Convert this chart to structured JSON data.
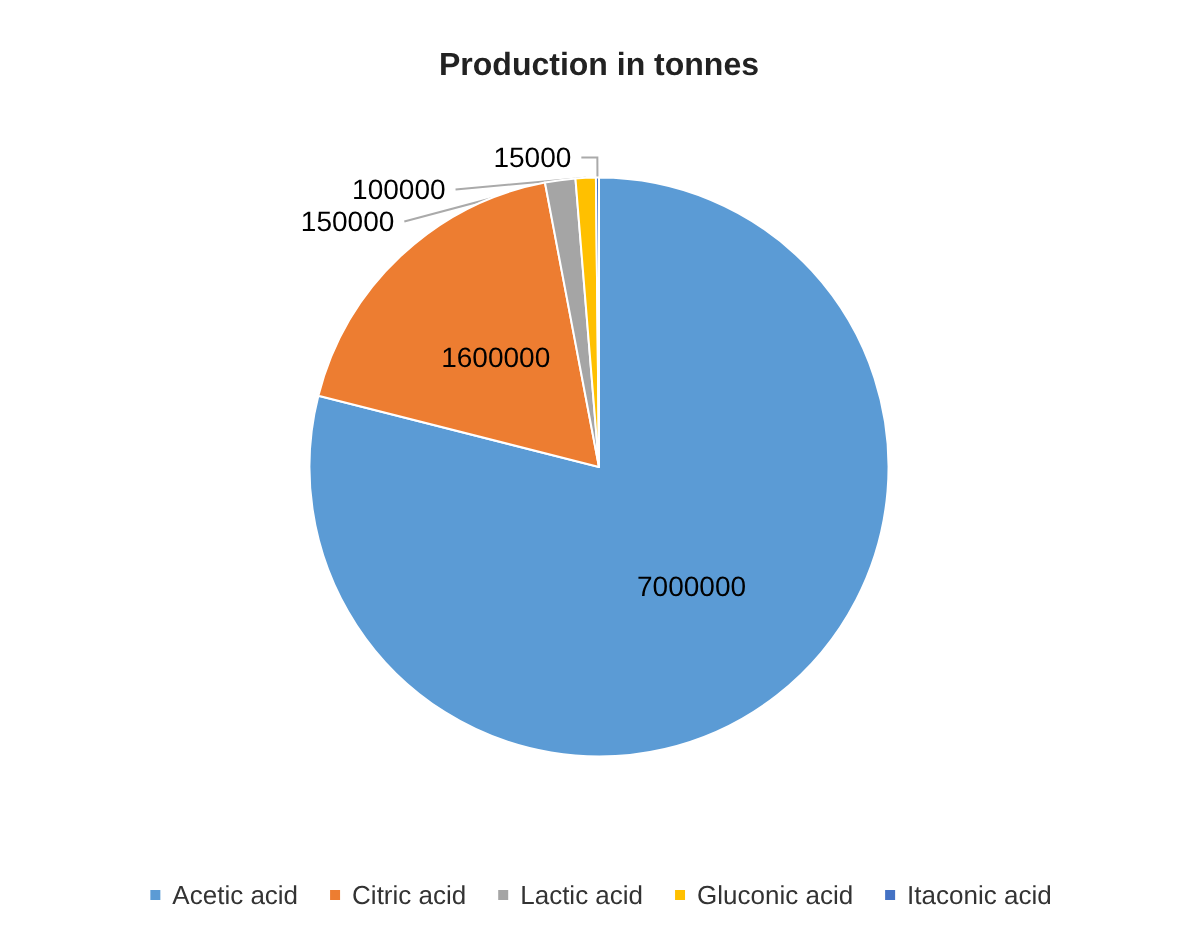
{
  "chart_data": {
    "type": "pie",
    "title": "Production in tonnes",
    "categories": [
      "Acetic acid",
      "Citric acid",
      "Lactic acid",
      "Gluconic acid",
      "Itaconic acid"
    ],
    "values": [
      7000000,
      1600000,
      150000,
      100000,
      15000
    ],
    "colors": [
      "#5b9bd5",
      "#ed7d31",
      "#a5a5a5",
      "#ffc000",
      "#4472c4"
    ],
    "data_labels": true,
    "legend": "bottom"
  }
}
